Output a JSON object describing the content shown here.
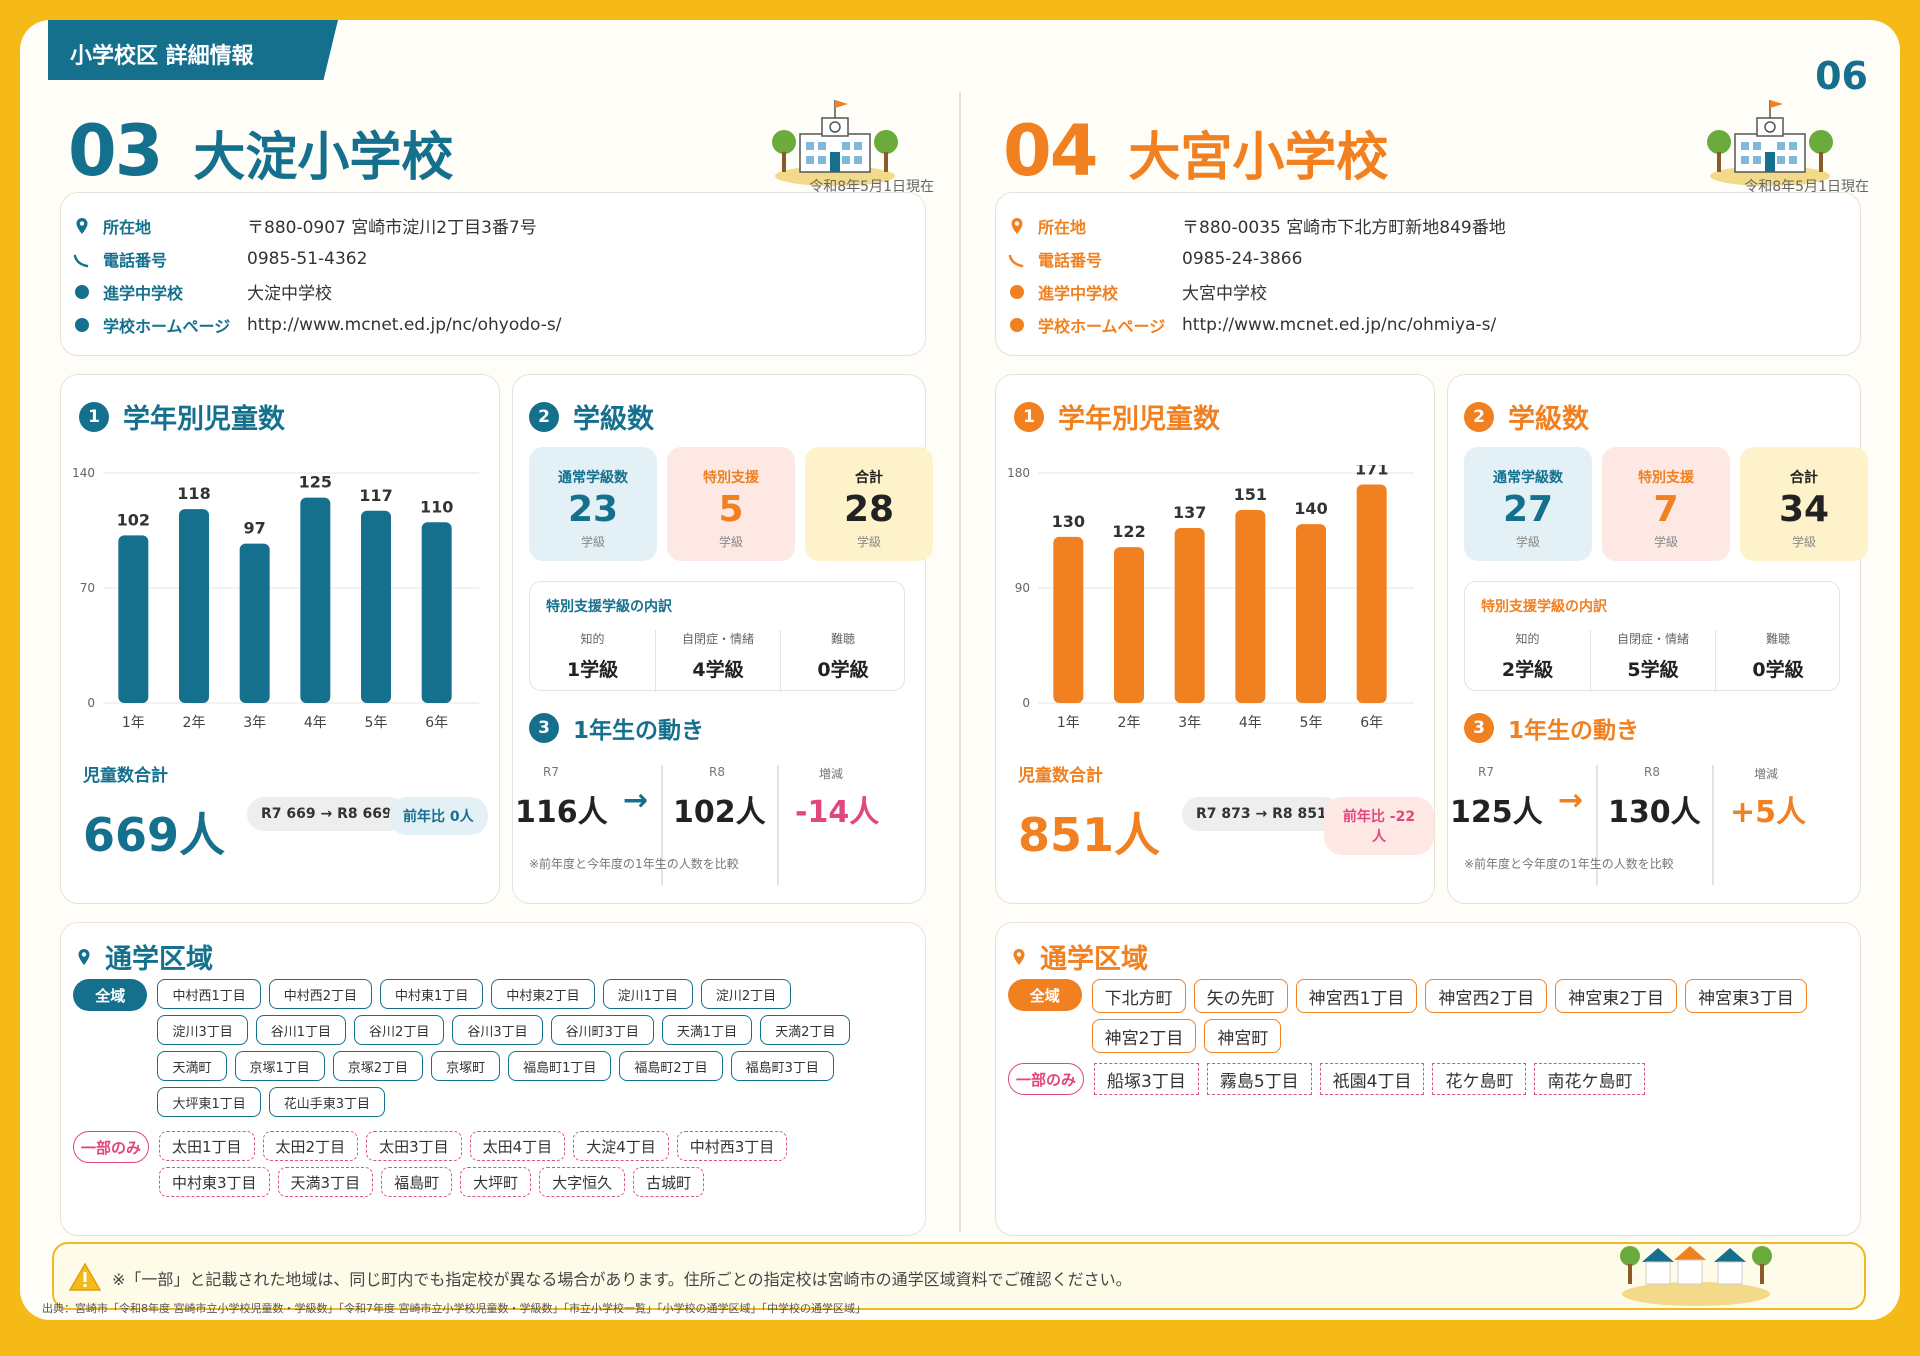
{
  "header": {
    "section_label": "小学校区 詳細情報",
    "page_number": "06"
  },
  "colors": {
    "school1": "#15708e",
    "school2": "#f08020",
    "regular_tile": "#e3f0f5",
    "special_tile": "#fde8e4",
    "total_tile": "#fdf2c9",
    "negative": "#e3457f",
    "positive": "#f08020"
  },
  "schools": [
    {
      "number": "03",
      "name": "大淀小学校",
      "date_note": "令和8年5月1日現在",
      "info": [
        {
          "icon": "location-pin-icon",
          "label": "所在地",
          "value": "〒880-0907 宮崎市淀川2丁目3番7号"
        },
        {
          "icon": "phone-icon",
          "label": "電話番号",
          "value": "0985-51-4362"
        },
        {
          "icon": "dot-icon",
          "label": "進学中学校",
          "value": "大淀中学校"
        },
        {
          "icon": "dot-icon",
          "label": "学校ホームページ",
          "value": "http://www.mcnet.ed.jp/nc/ohyodo-s/"
        }
      ],
      "grades": {
        "num": "1",
        "title": "学年別児童数",
        "chart_data": {
          "type": "bar",
          "categories": [
            "1年",
            "2年",
            "3年",
            "4年",
            "5年",
            "6年"
          ],
          "values": [
            102,
            118,
            97,
            125,
            117,
            110
          ],
          "ylim": [
            0,
            140
          ],
          "yticks": [
            "0",
            "70",
            "140"
          ],
          "title": "学年別児童数"
        },
        "total_label": "児童数合計",
        "total_value": "669人",
        "compare": "R7 669 → R8 669",
        "prev": "前年比 0人"
      },
      "classes": {
        "num": "2",
        "title": "学級数",
        "tiles": [
          {
            "label": "通常学級数",
            "value": "23",
            "unit": "学級"
          },
          {
            "label": "特別支援",
            "value": "5",
            "unit": "学級"
          },
          {
            "label": "合計",
            "value": "28",
            "unit": "学級"
          }
        ],
        "special_title": "特別支援学級の内訳",
        "special": [
          {
            "label": "知的",
            "value": "1学級"
          },
          {
            "label": "自閉症・情緒",
            "value": "4学級"
          },
          {
            "label": "難聴",
            "value": "0学級"
          }
        ],
        "trend_num": "3",
        "trend_title": "1年生の動き",
        "trend": {
          "r7_label": "R7",
          "r7_value": "116人",
          "arrow": "→",
          "r8_label": "R8",
          "r8_value": "102人",
          "diff_label": "増減",
          "diff_value": "-14人"
        },
        "trend_note": "※前年度と今年度の1年生の人数を比較"
      },
      "area": {
        "title": "通学区域",
        "full_label": "全域",
        "full": [
          "中村西1丁目",
          "中村西2丁目",
          "中村東1丁目",
          "中村東2丁目",
          "淀川1丁目",
          "淀川2丁目",
          "淀川3丁目",
          "谷川1丁目",
          "谷川2丁目",
          "谷川3丁目",
          "谷川町3丁目",
          "天満1丁目",
          "天満2丁目",
          "天満町",
          "京塚1丁目",
          "京塚2丁目",
          "京塚町",
          "福島町1丁目",
          "福島町2丁目",
          "福島町3丁目",
          "大坪東1丁目",
          "花山手東3丁目"
        ],
        "partial_label": "一部のみ",
        "partial": [
          "太田1丁目",
          "太田2丁目",
          "太田3丁目",
          "太田4丁目",
          "大淀4丁目",
          "中村西3丁目",
          "中村東3丁目",
          "天満3丁目",
          "福島町",
          "大坪町",
          "大字恒久",
          "古城町"
        ]
      }
    },
    {
      "number": "04",
      "name": "大宮小学校",
      "date_note": "令和8年5月1日現在",
      "info": [
        {
          "icon": "location-pin-icon",
          "label": "所在地",
          "value": "〒880-0035 宮崎市下北方町新地849番地"
        },
        {
          "icon": "phone-icon",
          "label": "電話番号",
          "value": "0985-24-3866"
        },
        {
          "icon": "dot-icon",
          "label": "進学中学校",
          "value": "大宮中学校"
        },
        {
          "icon": "dot-icon",
          "label": "学校ホームページ",
          "value": "http://www.mcnet.ed.jp/nc/ohmiya-s/"
        }
      ],
      "grades": {
        "num": "1",
        "title": "学年別児童数",
        "chart_data": {
          "type": "bar",
          "categories": [
            "1年",
            "2年",
            "3年",
            "4年",
            "5年",
            "6年"
          ],
          "values": [
            130,
            122,
            137,
            151,
            140,
            171
          ],
          "ylim": [
            0,
            180
          ],
          "yticks": [
            "0",
            "90",
            "180"
          ],
          "title": "学年別児童数"
        },
        "total_label": "児童数合計",
        "total_value": "851人",
        "compare": "R7 873 → R8 851",
        "prev": "前年比 -22人"
      },
      "classes": {
        "num": "2",
        "title": "学級数",
        "tiles": [
          {
            "label": "通常学級数",
            "value": "27",
            "unit": "学級"
          },
          {
            "label": "特別支援",
            "value": "7",
            "unit": "学級"
          },
          {
            "label": "合計",
            "value": "34",
            "unit": "学級"
          }
        ],
        "special_title": "特別支援学級の内訳",
        "special": [
          {
            "label": "知的",
            "value": "2学級"
          },
          {
            "label": "自閉症・情緒",
            "value": "5学級"
          },
          {
            "label": "難聴",
            "value": "0学級"
          }
        ],
        "trend_num": "3",
        "trend_title": "1年生の動き",
        "trend": {
          "r7_label": "R7",
          "r7_value": "125人",
          "arrow": "→",
          "r8_label": "R8",
          "r8_value": "130人",
          "diff_label": "増減",
          "diff_value": "+5人"
        },
        "trend_note": "※前年度と今年度の1年生の人数を比較"
      },
      "area": {
        "title": "通学区域",
        "full_label": "全域",
        "full": [
          "下北方町",
          "矢の先町",
          "神宮西1丁目",
          "神宮西2丁目",
          "神宮東2丁目",
          "神宮東3丁目",
          "神宮2丁目",
          "神宮町"
        ],
        "partial_label": "一部のみ",
        "partial": [
          "船塚3丁目",
          "霧島5丁目",
          "祇園4丁目",
          "花ケ島町",
          "南花ケ島町"
        ]
      }
    }
  ],
  "footer": {
    "note": "※「一部」と記載された地域は、同じ町内でも指定校が異なる場合があります。住所ごとの指定校は宮崎市の通学区域資料でご確認ください。",
    "source": "出典：宮崎市「令和8年度 宮崎市立小学校児童数・学級数」「令和7年度 宮崎市立小学校児童数・学級数」「市立小学校一覧」「小学校の通学区域」「中学校の通学区域」"
  }
}
